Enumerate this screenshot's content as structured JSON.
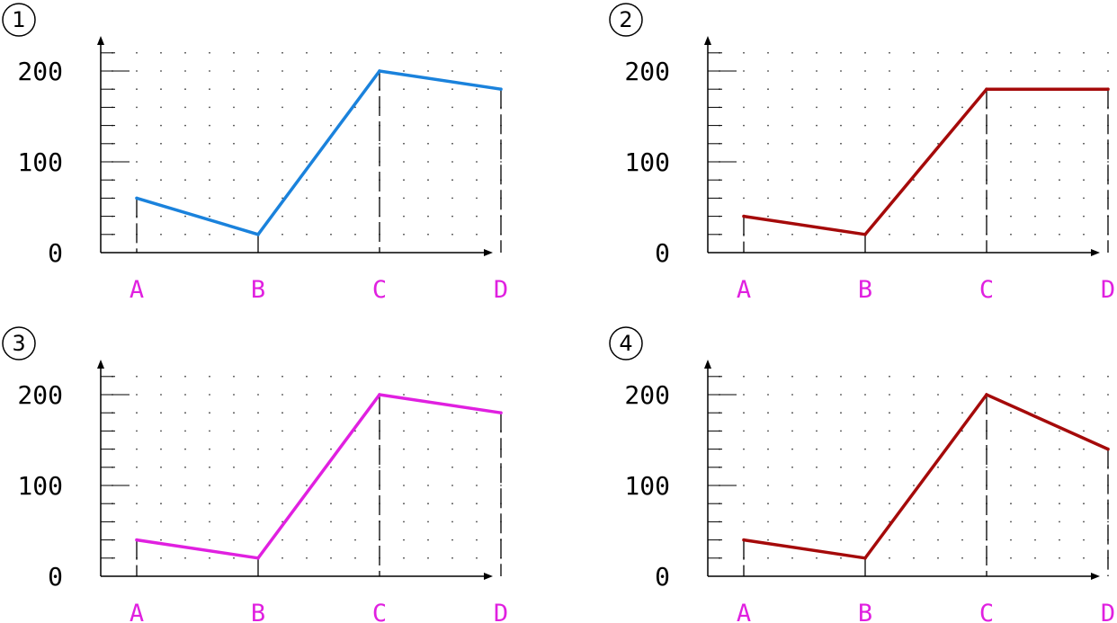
{
  "chart_data": [
    {
      "type": "line",
      "panel_label": "1",
      "categories": [
        "A",
        "B",
        "C",
        "D"
      ],
      "values": [
        60,
        20,
        200,
        180
      ],
      "color": "#1a82dc",
      "yticks": [
        "0",
        "100",
        "200"
      ],
      "ylim": [
        0,
        240
      ],
      "grid": "dotted",
      "category_label_color": "#e020e0"
    },
    {
      "type": "line",
      "panel_label": "2",
      "categories": [
        "A",
        "B",
        "C",
        "D"
      ],
      "values": [
        40,
        20,
        180,
        180
      ],
      "color": "#a50a0a",
      "yticks": [
        "0",
        "100",
        "200"
      ],
      "ylim": [
        0,
        240
      ],
      "grid": "dotted",
      "category_label_color": "#e020e0"
    },
    {
      "type": "line",
      "panel_label": "3",
      "categories": [
        "A",
        "B",
        "C",
        "D"
      ],
      "values": [
        40,
        20,
        200,
        180
      ],
      "color": "#e020e0",
      "yticks": [
        "0",
        "100",
        "200"
      ],
      "ylim": [
        0,
        240
      ],
      "grid": "dotted",
      "category_label_color": "#e020e0"
    },
    {
      "type": "line",
      "panel_label": "4",
      "categories": [
        "A",
        "B",
        "C",
        "D"
      ],
      "values": [
        40,
        20,
        200,
        140
      ],
      "color": "#a50a0a",
      "yticks": [
        "0",
        "100",
        "200"
      ],
      "ylim": [
        0,
        240
      ],
      "grid": "dotted",
      "category_label_color": "#e020e0"
    }
  ]
}
